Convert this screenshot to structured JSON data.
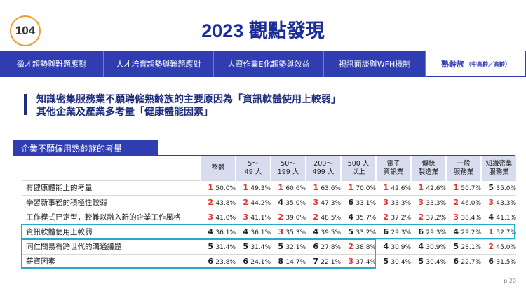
{
  "header": {
    "logo": "104",
    "title": "2023 觀點發現"
  },
  "tabs": [
    {
      "label": "徵才趨勢與難題應對"
    },
    {
      "label": "人才培育趨勢與難題應對"
    },
    {
      "label": "人資作業E化趨勢與效益"
    },
    {
      "label": "視訊面談與WFH機制"
    },
    {
      "label": "熟齡族",
      "sub": "（中高齡／高齡）"
    }
  ],
  "headline": [
    "知識密集服務業不願聘僱熟齡族的主要原因為「資訊軟體使用上較弱」",
    "其他企業及產業多考量「健康體能因素」"
  ],
  "section_label": "企業不願僱用熟齡族的考量",
  "table": {
    "columns": [
      [
        "整體"
      ],
      [
        "5～",
        "49 人"
      ],
      [
        "50～",
        "199 人"
      ],
      [
        "200～",
        "499 人"
      ],
      [
        "500 人",
        "以上"
      ],
      [
        "電子",
        "資訊業"
      ],
      [
        "傳統",
        "製造業"
      ],
      [
        "一般",
        "服務業"
      ],
      [
        "知識密集",
        "服務業"
      ]
    ],
    "rows": [
      {
        "label": "有健康體能上的考量",
        "cells": [
          {
            "rank": 1,
            "pct": "50.0%"
          },
          {
            "rank": 1,
            "pct": "49.3%"
          },
          {
            "rank": 1,
            "pct": "60.6%"
          },
          {
            "rank": 1,
            "pct": "63.6%"
          },
          {
            "rank": 1,
            "pct": "70.0%"
          },
          {
            "rank": 1,
            "pct": "42.6%"
          },
          {
            "rank": 1,
            "pct": "42.6%"
          },
          {
            "rank": 1,
            "pct": "50.7%"
          },
          {
            "rank": 5,
            "pct": "35.0%"
          }
        ]
      },
      {
        "label": "學習新事務的積極性較弱",
        "cells": [
          {
            "rank": 2,
            "pct": "43.8%"
          },
          {
            "rank": 2,
            "pct": "44.2%"
          },
          {
            "rank": 4,
            "pct": "35.0%"
          },
          {
            "rank": 3,
            "pct": "47.3%"
          },
          {
            "rank": 6,
            "pct": "33.1%"
          },
          {
            "rank": 3,
            "pct": "33.3%"
          },
          {
            "rank": 3,
            "pct": "33.3%"
          },
          {
            "rank": 2,
            "pct": "46.0%"
          },
          {
            "rank": 3,
            "pct": "43.3%"
          }
        ]
      },
      {
        "label": "工作模式已定型，較難以融入新的企業工作風格",
        "cells": [
          {
            "rank": 3,
            "pct": "41.0%"
          },
          {
            "rank": 3,
            "pct": "41.1%"
          },
          {
            "rank": 2,
            "pct": "39.0%"
          },
          {
            "rank": 2,
            "pct": "48.5%"
          },
          {
            "rank": 4,
            "pct": "35.7%"
          },
          {
            "rank": 2,
            "pct": "37.2%"
          },
          {
            "rank": 2,
            "pct": "37.2%"
          },
          {
            "rank": 3,
            "pct": "38.4%"
          },
          {
            "rank": 4,
            "pct": "41.1%"
          }
        ]
      },
      {
        "label": "資訊軟體使用上較弱",
        "cells": [
          {
            "rank": 4,
            "pct": "36.1%"
          },
          {
            "rank": 4,
            "pct": "36.1%"
          },
          {
            "rank": 3,
            "pct": "35.3%"
          },
          {
            "rank": 4,
            "pct": "39.5%"
          },
          {
            "rank": 5,
            "pct": "33.2%"
          },
          {
            "rank": 6,
            "pct": "29.3%"
          },
          {
            "rank": 6,
            "pct": "29.3%"
          },
          {
            "rank": 4,
            "pct": "29.2%"
          },
          {
            "rank": 1,
            "pct": "52.7%"
          }
        ]
      },
      {
        "label": "同仁間易有跨世代的溝通議題",
        "cells": [
          {
            "rank": 5,
            "pct": "31.4%"
          },
          {
            "rank": 5,
            "pct": "31.4%"
          },
          {
            "rank": 5,
            "pct": "32.1%"
          },
          {
            "rank": 6,
            "pct": "27.8%"
          },
          {
            "rank": 2,
            "pct": "38.8%"
          },
          {
            "rank": 4,
            "pct": "30.9%"
          },
          {
            "rank": 4,
            "pct": "30.9%"
          },
          {
            "rank": 5,
            "pct": "28.1%"
          },
          {
            "rank": 2,
            "pct": "45.0%"
          }
        ]
      },
      {
        "label": "薪資因素",
        "cells": [
          {
            "rank": 6,
            "pct": "23.8%"
          },
          {
            "rank": 6,
            "pct": "24.1%"
          },
          {
            "rank": 8,
            "pct": "14.7%"
          },
          {
            "rank": 7,
            "pct": "22.1%"
          },
          {
            "rank": 3,
            "pct": "37.4%"
          },
          {
            "rank": 5,
            "pct": "30.4%"
          },
          {
            "rank": 5,
            "pct": "30.4%"
          },
          {
            "rank": 6,
            "pct": "22.7%"
          },
          {
            "rank": 6,
            "pct": "31.5%"
          }
        ]
      }
    ]
  },
  "page_number": "p.20"
}
